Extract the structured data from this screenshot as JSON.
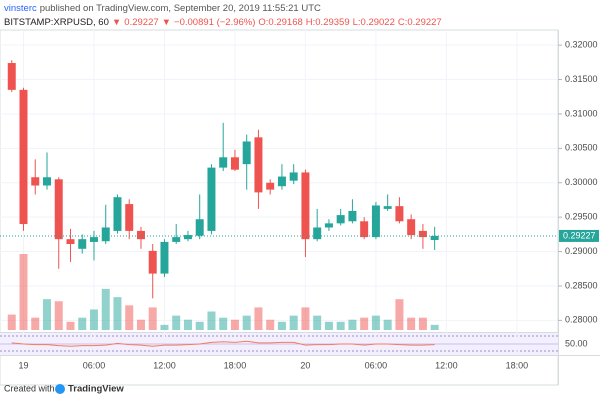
{
  "header": {
    "author": "vinsterc",
    "published": "published on TradingView.com, September 20, 2019 11:55:21 UTC",
    "symbol": "BITSTAMP:XRPUSD, 60",
    "last": "0.29227",
    "change": "−0.00891 (−2.96%)",
    "open": "O:0.29168",
    "high": "H:0.29359",
    "low": "L:0.29022",
    "close": "C:0.29227"
  },
  "footer": {
    "created": "Created with",
    "brand": "TradingView"
  },
  "chart_data": {
    "type": "candlestick",
    "up_color": "#26a69a",
    "down_color": "#ef5350",
    "x": [
      "2019-09-18 23:00",
      "2019-09-19 00:00",
      "2019-09-19 01:00",
      "2019-09-19 02:00",
      "2019-09-19 03:00",
      "2019-09-19 04:00",
      "2019-09-19 05:00",
      "2019-09-19 06:00",
      "2019-09-19 07:00",
      "2019-09-19 08:00",
      "2019-09-19 09:00",
      "2019-09-19 10:00",
      "2019-09-19 11:00",
      "2019-09-19 12:00",
      "2019-09-19 13:00",
      "2019-09-19 14:00",
      "2019-09-19 15:00",
      "2019-09-19 16:00",
      "2019-09-19 17:00",
      "2019-09-19 18:00",
      "2019-09-19 19:00",
      "2019-09-19 20:00",
      "2019-09-19 21:00",
      "2019-09-19 22:00",
      "2019-09-19 23:00",
      "2019-09-20 00:00",
      "2019-09-20 01:00",
      "2019-09-20 02:00",
      "2019-09-20 03:00",
      "2019-09-20 04:00",
      "2019-09-20 05:00",
      "2019-09-20 06:00",
      "2019-09-20 07:00",
      "2019-09-20 08:00",
      "2019-09-20 09:00",
      "2019-09-20 10:00",
      "2019-09-20 11:00"
    ],
    "open": [
      0.3174,
      0.3135,
      0.3008,
      0.2996,
      0.3005,
      0.2918,
      0.2904,
      0.2914,
      0.2915,
      0.293,
      0.2969,
      0.293,
      0.2901,
      0.2868,
      0.2914,
      0.2918,
      0.2923,
      0.293,
      0.3022,
      0.3037,
      0.3027,
      0.3066,
      0.3,
      0.2995,
      0.3003,
      0.3015,
      0.2918,
      0.2935,
      0.2941,
      0.2944,
      0.2944,
      0.2921,
      0.2962,
      0.2966,
      0.2947,
      0.293,
      0.29168
    ],
    "high": [
      0.3178,
      0.3138,
      0.3034,
      0.3044,
      0.3008,
      0.2933,
      0.2925,
      0.293,
      0.2968,
      0.2983,
      0.2976,
      0.2936,
      0.2911,
      0.2918,
      0.294,
      0.293,
      0.2983,
      0.3027,
      0.3087,
      0.3048,
      0.307,
      0.3077,
      0.3005,
      0.3027,
      0.3027,
      0.3019,
      0.2962,
      0.2947,
      0.2962,
      0.2976,
      0.295,
      0.2972,
      0.2983,
      0.2979,
      0.2954,
      0.294,
      0.29359
    ],
    "low": [
      0.3132,
      0.293,
      0.2983,
      0.299,
      0.2875,
      0.2885,
      0.2897,
      0.2887,
      0.2911,
      0.2926,
      0.2918,
      0.2904,
      0.2832,
      0.2863,
      0.2911,
      0.2915,
      0.2918,
      0.2925,
      0.3017,
      0.3017,
      0.299,
      0.2962,
      0.2983,
      0.299,
      0.2998,
      0.2892,
      0.2915,
      0.293,
      0.2938,
      0.2941,
      0.2918,
      0.2918,
      0.2959,
      0.2941,
      0.2918,
      0.2904,
      0.29022
    ],
    "close": [
      0.3135,
      0.294,
      0.2996,
      0.3008,
      0.2918,
      0.2911,
      0.2918,
      0.2921,
      0.2935,
      0.2979,
      0.293,
      0.2918,
      0.2868,
      0.2914,
      0.2921,
      0.2924,
      0.2947,
      0.3022,
      0.3037,
      0.3019,
      0.306,
      0.2986,
      0.299,
      0.3009,
      0.3015,
      0.2918,
      0.2935,
      0.2941,
      0.2953,
      0.2959,
      0.2921,
      0.2967,
      0.2966,
      0.2944,
      0.2924,
      0.2921,
      0.29227
    ],
    "volume": [
      15,
      74,
      12,
      30,
      28,
      8,
      12,
      20,
      40,
      32,
      24,
      10,
      22,
      5,
      14,
      10,
      8,
      18,
      12,
      10,
      14,
      22,
      10,
      8,
      14,
      22,
      14,
      8,
      8,
      10,
      12,
      14,
      10,
      30,
      12,
      12,
      5
    ],
    "rsi": [
      52,
      50,
      49,
      49,
      47,
      46,
      47,
      47,
      48,
      51,
      49,
      48,
      46,
      48,
      48,
      49,
      50,
      53,
      54,
      53,
      55,
      52,
      52,
      53,
      53,
      48,
      49,
      49,
      50,
      50,
      48,
      50,
      50,
      49,
      48,
      48,
      49
    ],
    "rsi_ylim": [
      30,
      70
    ],
    "rsi_yticks": [
      {
        "value": 50,
        "label": "50.00"
      }
    ],
    "xlim": [
      "2019-09-18 22:00",
      "2019-09-20 21:30"
    ],
    "xticks": [
      {
        "value": "2019-09-19 00:00",
        "label": "19"
      },
      {
        "value": "2019-09-19 06:00",
        "label": "06:00"
      },
      {
        "value": "2019-09-19 12:00",
        "label": "12:00"
      },
      {
        "value": "2019-09-19 18:00",
        "label": "18:00"
      },
      {
        "value": "2019-09-20 00:00",
        "label": "20"
      },
      {
        "value": "2019-09-20 06:00",
        "label": "06:00"
      },
      {
        "value": "2019-09-20 12:00",
        "label": "12:00"
      },
      {
        "value": "2019-09-20 18:00",
        "label": "18:00"
      }
    ],
    "ylim": [
      0.2786,
      0.3222
    ],
    "yticks": [
      {
        "value": 0.28,
        "label": "0.28000"
      },
      {
        "value": 0.285,
        "label": "0.28500"
      },
      {
        "value": 0.29,
        "label": "0.29000"
      },
      {
        "value": 0.295,
        "label": "0.29500"
      },
      {
        "value": 0.3,
        "label": "0.30000"
      },
      {
        "value": 0.305,
        "label": "0.30500"
      },
      {
        "value": 0.31,
        "label": "0.31000"
      },
      {
        "value": 0.315,
        "label": "0.31500"
      },
      {
        "value": 0.32,
        "label": "0.32000"
      }
    ],
    "grid": true
  }
}
